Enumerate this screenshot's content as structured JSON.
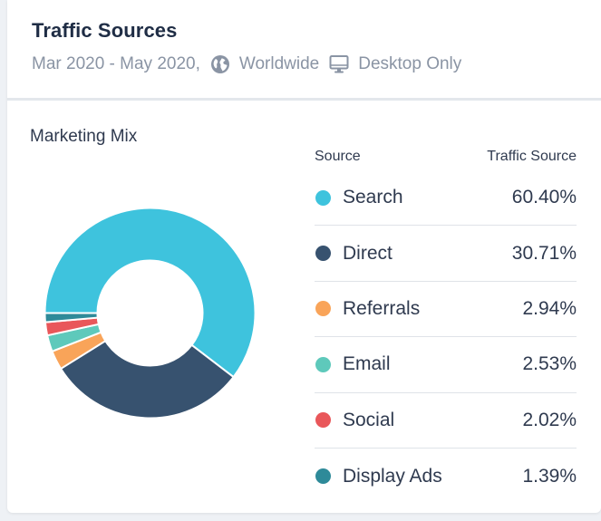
{
  "header": {
    "title": "Traffic Sources",
    "date_range": "Mar 2020 - May 2020,",
    "region": "Worldwide",
    "device": "Desktop Only",
    "icons": [
      "globe-icon",
      "desktop-icon"
    ]
  },
  "chart": {
    "label": "Marketing Mix"
  },
  "table": {
    "col_source": "Source",
    "col_share": "Traffic Source",
    "rows": [
      {
        "name": "Search",
        "value": "60.40%",
        "color": "#3ec3dd"
      },
      {
        "name": "Direct",
        "value": "30.71%",
        "color": "#37526f"
      },
      {
        "name": "Referrals",
        "value": "2.94%",
        "color": "#f9a459"
      },
      {
        "name": "Email",
        "value": "2.53%",
        "color": "#5ec9bb"
      },
      {
        "name": "Social",
        "value": "2.02%",
        "color": "#e9575a"
      },
      {
        "name": "Display Ads",
        "value": "1.39%",
        "color": "#2e8a99"
      }
    ]
  },
  "chart_data": {
    "type": "pie",
    "title": "Marketing Mix",
    "categories": [
      "Search",
      "Direct",
      "Referrals",
      "Email",
      "Social",
      "Display Ads"
    ],
    "values": [
      60.4,
      30.71,
      2.94,
      2.53,
      2.02,
      1.39
    ],
    "colors": [
      "#3ec3dd",
      "#37526f",
      "#f9a459",
      "#5ec9bb",
      "#e9575a",
      "#2e8a99"
    ],
    "donut": true,
    "legend": "right-table"
  }
}
